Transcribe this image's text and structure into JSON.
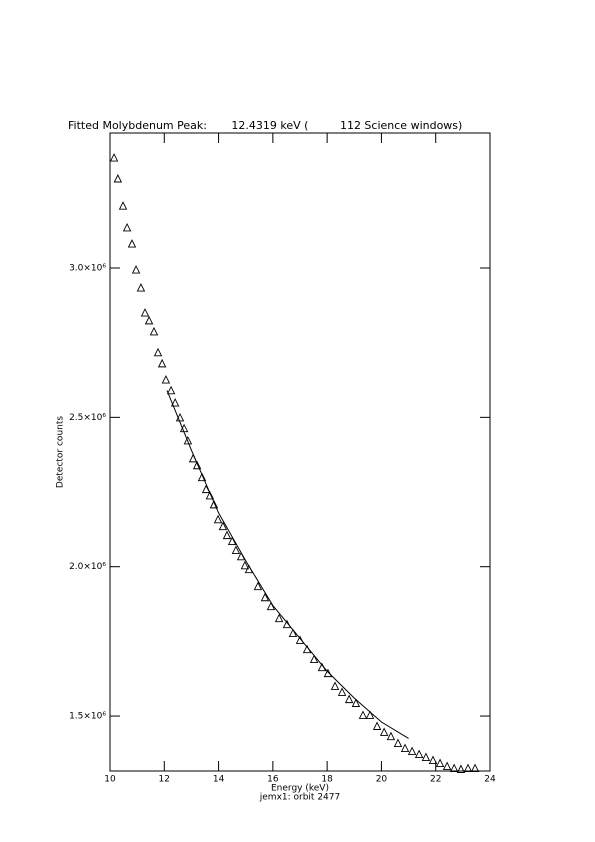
{
  "chart_data": {
    "type": "scatter",
    "title": "Fitted Molybdenum Peak:       12.4319 keV (         112 Science windows)",
    "x_label": "Energy (keV)",
    "y_label": "Detector counts",
    "footer": "jemx1: orbit 2477",
    "xlim": [
      10,
      24
    ],
    "xticks": [
      10,
      12,
      14,
      16,
      18,
      20,
      22,
      24
    ],
    "ylim": [
      1316000,
      3452000
    ],
    "yticks": [
      {
        "value": 1500000,
        "label": "1.5×10⁶"
      },
      {
        "value": 2000000,
        "label": "2.0×10⁶"
      },
      {
        "value": 2500000,
        "label": "2.5×10⁶"
      },
      {
        "value": 3000000,
        "label": "3.0×10⁶"
      }
    ],
    "series": [
      {
        "marker": "triangle",
        "color": "#000000",
        "x": [
          10.15,
          10.29,
          10.48,
          10.63,
          10.81,
          10.96,
          11.14,
          11.29,
          11.44,
          11.62,
          11.77,
          11.92,
          12.06,
          12.25,
          12.4,
          12.58,
          12.73,
          12.87,
          13.06,
          13.21,
          13.39,
          13.54,
          13.68,
          13.83,
          13.98,
          14.16,
          14.31,
          14.5,
          14.64,
          14.83,
          14.97,
          15.12,
          15.45,
          15.71,
          15.93,
          16.23,
          16.52,
          16.74,
          17.0,
          17.26,
          17.52,
          17.81,
          18.03,
          18.29,
          18.55,
          18.81,
          19.06,
          19.32,
          19.58,
          19.84,
          20.1,
          20.35,
          20.61,
          20.87,
          21.13,
          21.39,
          21.64,
          21.9,
          22.16,
          22.42,
          22.68,
          22.93,
          23.19,
          23.45
        ],
        "values": [
          3368000,
          3298000,
          3207000,
          3134000,
          3080000,
          2993000,
          2933000,
          2849000,
          2823000,
          2786000,
          2716000,
          2679000,
          2625000,
          2589000,
          2548000,
          2498000,
          2462000,
          2421000,
          2361000,
          2338000,
          2298000,
          2258000,
          2237000,
          2207000,
          2157000,
          2134000,
          2104000,
          2084000,
          2054000,
          2033000,
          2003000,
          1990000,
          1933000,
          1896000,
          1866000,
          1826000,
          1806000,
          1776000,
          1753000,
          1722000,
          1689000,
          1662000,
          1642000,
          1599000,
          1579000,
          1555000,
          1542000,
          1502000,
          1502000,
          1465000,
          1445000,
          1431000,
          1408000,
          1391000,
          1381000,
          1371000,
          1361000,
          1351000,
          1341000,
          1331000,
          1324000,
          1321000,
          1324000,
          1324000
        ]
      },
      {
        "marker": "line",
        "color": "#000000",
        "x": [
          12.1,
          13,
          14,
          15,
          16,
          17,
          18,
          19,
          20,
          21
        ],
        "values": [
          2590000,
          2390000,
          2180000,
          2020000,
          1870000,
          1760000,
          1650000,
          1560000,
          1480000,
          1425000
        ]
      }
    ]
  }
}
